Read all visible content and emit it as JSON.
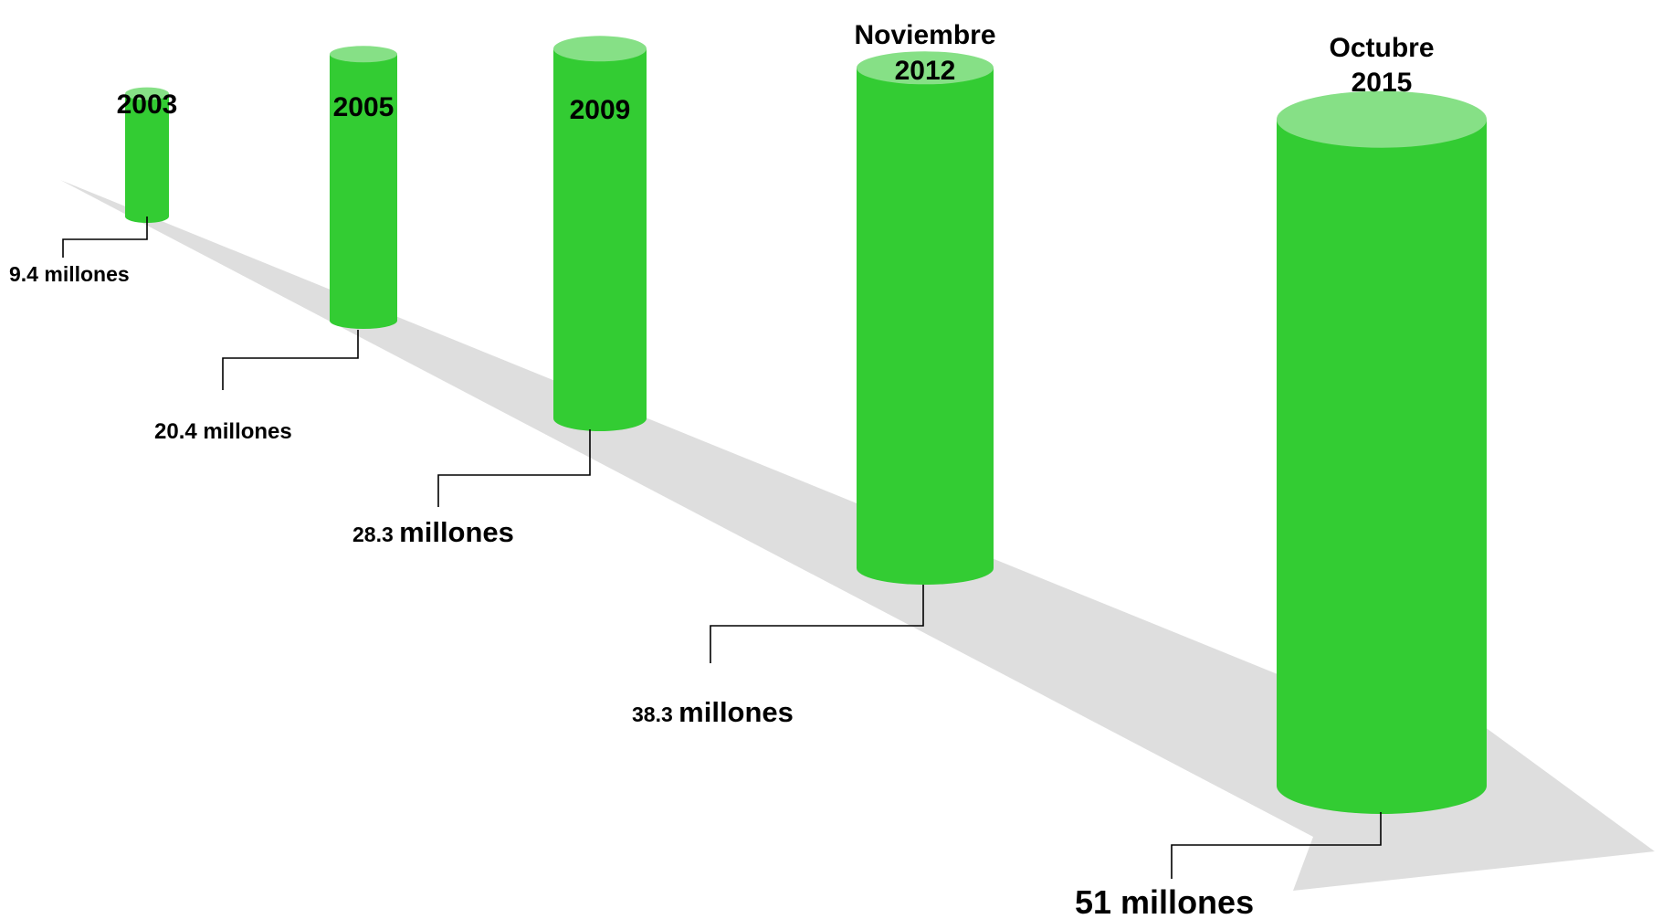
{
  "chart_data": {
    "type": "bar",
    "title": "",
    "xlabel": "",
    "ylabel": "",
    "unit": "millones",
    "categories": [
      "2003",
      "2005",
      "2009",
      "Noviembre 2012",
      "Octubre 2015"
    ],
    "values": [
      9.4,
      20.4,
      28.3,
      38.3,
      51
    ],
    "series": [
      {
        "values": [
          9.4,
          20.4,
          28.3,
          38.3,
          51
        ]
      }
    ],
    "period_labels": [
      {
        "line1": "2003",
        "line2": ""
      },
      {
        "line1": "2005",
        "line2": ""
      },
      {
        "line1": "2009",
        "line2": ""
      },
      {
        "line1": "Noviembre",
        "line2": "2012"
      },
      {
        "line1": "Octubre",
        "line2": "2015"
      }
    ],
    "data_labels": [
      {
        "number": "9.4",
        "unit": "millones"
      },
      {
        "number": "20.4",
        "unit": "millones"
      },
      {
        "number": "28.3",
        "unit": "millones"
      },
      {
        "number": "38.3",
        "unit": "millones"
      },
      {
        "number": "51",
        "unit": "millones"
      }
    ],
    "grid": false,
    "legend": "none"
  },
  "colors": {
    "cylinder_body": "#33cc33",
    "cylinder_top": "#86e086",
    "arrow": "#dedede",
    "text": "#000000",
    "leader_line": "#000000",
    "background": "#ffffff"
  }
}
